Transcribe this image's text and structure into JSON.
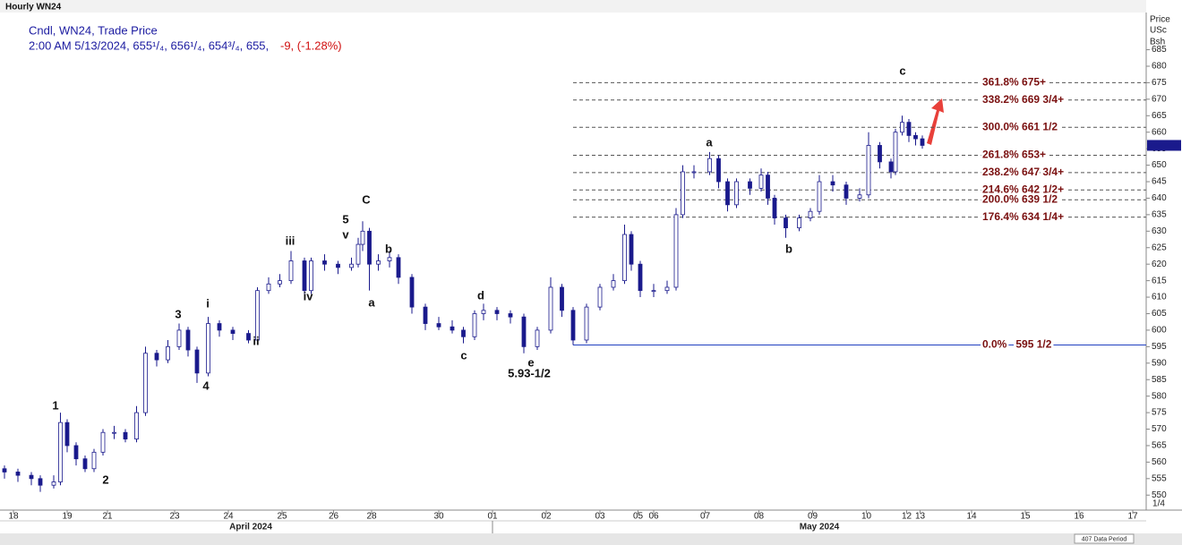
{
  "chart_data": {
    "type": "candlestick",
    "title": "Hourly WN24",
    "subtitle": "Cndl, WN24, Trade Price",
    "info_line": "2:00 AM 5/13/2024, 655¹/₄, 656¹/₄, 654³/₄, 655,",
    "info_change": "-9, (-1.28%)",
    "axis_header": [
      "Price",
      "USc",
      "Bsh"
    ],
    "ylim": [
      546,
      696
    ],
    "yticks": [
      550,
      555,
      560,
      565,
      570,
      575,
      580,
      585,
      590,
      595,
      600,
      605,
      610,
      615,
      620,
      625,
      630,
      635,
      640,
      645,
      650,
      655,
      660,
      665,
      670,
      675,
      680,
      685
    ],
    "xlim": [
      0,
      510
    ],
    "xticks": [
      {
        "value": 4,
        "label": "18"
      },
      {
        "value": 28,
        "label": "19"
      },
      {
        "value": 46,
        "label": "21"
      },
      {
        "value": 76,
        "label": "23"
      },
      {
        "value": 100,
        "label": "24"
      },
      {
        "value": 124,
        "label": "25"
      },
      {
        "value": 147,
        "label": "26"
      },
      {
        "value": 164,
        "label": "28"
      },
      {
        "value": 194,
        "label": "30"
      },
      {
        "value": 218,
        "label": "01"
      },
      {
        "value": 242,
        "label": "02"
      },
      {
        "value": 266,
        "label": "03"
      },
      {
        "value": 283,
        "label": "05"
      },
      {
        "value": 290,
        "label": "06"
      },
      {
        "value": 313,
        "label": "07"
      },
      {
        "value": 337,
        "label": "08"
      },
      {
        "value": 361,
        "label": "09"
      },
      {
        "value": 385,
        "label": "10"
      },
      {
        "value": 403,
        "label": "12"
      },
      {
        "value": 409,
        "label": "13"
      },
      {
        "value": 432,
        "label": "14"
      },
      {
        "value": 456,
        "label": "15"
      },
      {
        "value": 480,
        "label": "16"
      },
      {
        "value": 504,
        "label": "17"
      }
    ],
    "months": [
      "April 2024",
      "May 2024"
    ],
    "series": [
      {
        "name": "WN24",
        "color": "#1a1a8c",
        "x": [
          0,
          6,
          12,
          16,
          22,
          25,
          28,
          32,
          36,
          40,
          44,
          49,
          54,
          59,
          63,
          68,
          73,
          78,
          82,
          86,
          91,
          96,
          102,
          109,
          113,
          118,
          123,
          128,
          134,
          137,
          143,
          149,
          155,
          158,
          160,
          163,
          167,
          172,
          176,
          182,
          188,
          194,
          200,
          205,
          210,
          214,
          220,
          226,
          232,
          238,
          244,
          249,
          254,
          260,
          266,
          272,
          277,
          280,
          284,
          290,
          296,
          300,
          303,
          308,
          315,
          319,
          323,
          327,
          333,
          338,
          341,
          344,
          349,
          355,
          360,
          364,
          370,
          376,
          382,
          386,
          391,
          396,
          398,
          401,
          404,
          407,
          410
        ],
        "open": [
          558,
          557,
          556,
          555,
          553,
          554,
          572,
          565,
          561,
          558,
          563,
          569,
          569,
          567,
          575,
          593,
          591,
          595,
          600,
          594,
          587,
          602,
          600,
          599,
          597,
          612,
          614,
          615,
          621,
          612,
          621,
          620,
          619,
          620,
          626,
          630,
          620,
          621,
          622,
          616,
          607,
          602,
          601,
          600,
          598,
          605,
          606,
          605,
          604,
          595,
          600,
          613,
          606,
          597,
          607,
          613,
          615,
          629,
          620,
          612,
          612,
          613,
          635,
          648,
          648,
          652,
          645,
          638,
          645,
          643,
          647,
          640,
          634,
          631,
          634,
          636,
          645,
          644,
          640,
          641,
          656,
          651,
          648,
          660,
          663,
          659,
          658
        ],
        "high": [
          559,
          558,
          557,
          556,
          556,
          575,
          573,
          566,
          562,
          564,
          570,
          571,
          570,
          577,
          595,
          594,
          597,
          602,
          601,
          595,
          604,
          603,
          601,
          600,
          613,
          616,
          617,
          624,
          622,
          622,
          623,
          621,
          622,
          628,
          633,
          631,
          623,
          624,
          623,
          617,
          608,
          604,
          603,
          601,
          606,
          608,
          607,
          606,
          605,
          601,
          616,
          614,
          607,
          608,
          614,
          617,
          632,
          630,
          621,
          614,
          615,
          637,
          650,
          650,
          654,
          653,
          646,
          646,
          646,
          649,
          648,
          641,
          635,
          635,
          637,
          647,
          647,
          645,
          643,
          660,
          657,
          652,
          661,
          665,
          664,
          660,
          659
        ],
        "low": [
          555,
          554,
          553,
          551,
          552,
          553,
          563,
          559,
          557,
          557,
          562,
          567,
          566,
          566,
          574,
          589,
          590,
          594,
          592,
          584,
          586,
          598,
          597,
          596,
          596,
          611,
          613,
          614,
          611,
          611,
          618,
          617,
          618,
          619,
          624,
          612,
          618,
          619,
          614,
          605,
          600,
          600,
          599,
          596,
          597,
          603,
          603,
          602,
          593,
          594,
          599,
          604,
          595.5,
          596,
          606,
          612,
          614,
          618,
          610,
          610,
          611,
          612,
          634,
          646,
          647,
          643,
          636,
          637,
          641,
          642,
          638,
          632,
          628,
          630,
          633,
          635,
          642,
          638,
          639,
          640,
          649,
          646,
          647,
          659,
          657,
          656,
          655
        ],
        "close": [
          557,
          556,
          555,
          553,
          554,
          572,
          565,
          561,
          558,
          563,
          569,
          569,
          567,
          575,
          593,
          591,
          595,
          600,
          594,
          587,
          602,
          600,
          599,
          597,
          612,
          614,
          615,
          621,
          612,
          621,
          620,
          619,
          620,
          626,
          630,
          620,
          621,
          622,
          616,
          607,
          602,
          601,
          600,
          598,
          605,
          606,
          605,
          604,
          595,
          600,
          613,
          606,
          597,
          607,
          613,
          615,
          629,
          620,
          612,
          612,
          613,
          635,
          648,
          648,
          652,
          645,
          638,
          645,
          643,
          647,
          640,
          634,
          631,
          634,
          636,
          645,
          644,
          640,
          641,
          656,
          651,
          648,
          660,
          663,
          659,
          658,
          656
        ]
      }
    ],
    "fib_start": 254,
    "fib_levels": [
      {
        "label": "361.8% 675+",
        "value": 675
      },
      {
        "label": "338.2% 669 3/4+",
        "value": 669.75
      },
      {
        "label": "300.0% 661 1/2",
        "value": 661.5
      },
      {
        "label": "261.8% 653+",
        "value": 653
      },
      {
        "label": "238.2% 647 3/4+",
        "value": 647.75
      },
      {
        "label": "214.6% 642 1/2+",
        "value": 642.5
      },
      {
        "label": "200.0% 639 1/2",
        "value": 639.5
      },
      {
        "label": "176.4% 634 1/4+",
        "value": 634.25
      },
      {
        "label": "0.0%   595 1/2",
        "value": 595.5
      }
    ],
    "annotations": [
      "1",
      "2",
      "3",
      "4",
      "i",
      "ii",
      "iii",
      "iv",
      "5",
      "v",
      "C",
      "a",
      "b",
      "c",
      "d",
      "e",
      "5.93-1/2",
      "a",
      "b",
      "c"
    ],
    "status": "407 Data Period",
    "page_indicator": "1/4"
  }
}
